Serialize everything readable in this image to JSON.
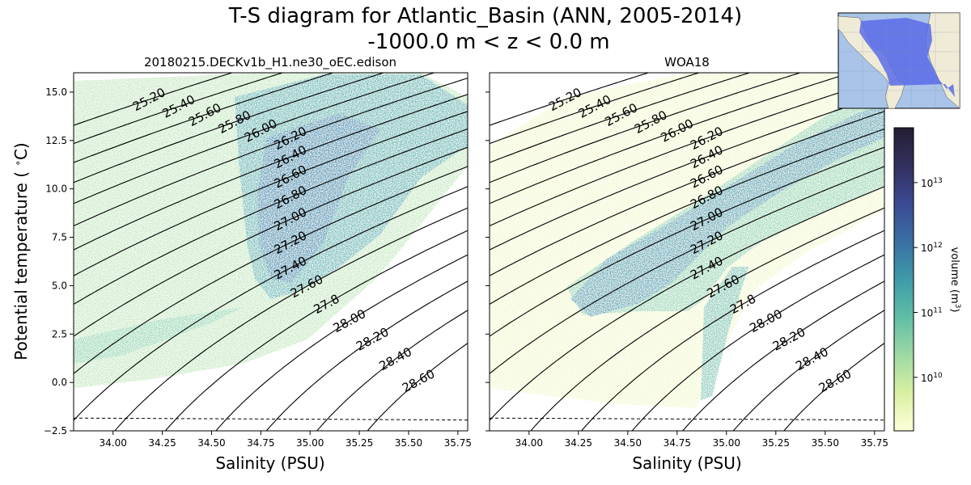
{
  "figure": {
    "title_line1": "T-S diagram for Atlantic_Basin (ANN, 2005-2014)",
    "title_line2": "-1000.0 m < z < 0.0 m",
    "map_inset": "atlantic-basin-map"
  },
  "chart_data": [
    {
      "type": "heatmap",
      "panel": "left",
      "title": "20180215.DECKv1b_H1.ne30_oEC.edison",
      "xlabel": "Salinity (PSU)",
      "ylabel": "Potential temperature ($^\\circ$C)",
      "xlim": [
        33.8,
        35.8
      ],
      "ylim": [
        -2.5,
        16.0
      ],
      "xticks": [
        "34.00",
        "34.25",
        "34.50",
        "34.75",
        "35.00",
        "35.25",
        "35.50",
        "35.75"
      ],
      "yticks": [
        "−2.5",
        "0.0",
        "2.5",
        "5.0",
        "7.5",
        "10.0",
        "12.5",
        "15.0"
      ],
      "freezing_line_T": [
        -1.84,
        -1.94
      ],
      "density_contours": [
        {
          "label": "25.20",
          "value": 25.2
        },
        {
          "label": "25.40",
          "value": 25.4
        },
        {
          "label": "25.60",
          "value": 25.6
        },
        {
          "label": "25.80",
          "value": 25.8
        },
        {
          "label": "26.00",
          "value": 26.0
        },
        {
          "label": "26.20",
          "value": 26.2
        },
        {
          "label": "26.40",
          "value": 26.4
        },
        {
          "label": "26.60",
          "value": 26.6
        },
        {
          "label": "26.80",
          "value": 26.8
        },
        {
          "label": "27.00",
          "value": 27.0
        },
        {
          "label": "27.20",
          "value": 27.2
        },
        {
          "label": "27.40",
          "value": 27.4
        },
        {
          "label": "27.60",
          "value": 27.6
        },
        {
          "label": "27.8",
          "value": 27.8
        },
        {
          "label": "28.00",
          "value": 28.0
        },
        {
          "label": "28.20",
          "value": 28.2
        },
        {
          "label": "28.40",
          "value": 28.4
        },
        {
          "label": "28.60",
          "value": 28.6
        }
      ]
    },
    {
      "type": "heatmap",
      "panel": "right",
      "title": "WOA18",
      "xlabel": "Salinity (PSU)",
      "xlim": [
        33.8,
        35.8
      ],
      "ylim": [
        -2.5,
        16.0
      ],
      "xticks": [
        "34.00",
        "34.25",
        "34.50",
        "34.75",
        "35.00",
        "35.25",
        "35.50",
        "35.75"
      ],
      "freezing_line_T": [
        -1.84,
        -1.94
      ],
      "density_contours": [
        {
          "label": "25.20",
          "value": 25.2
        },
        {
          "label": "25.40",
          "value": 25.4
        },
        {
          "label": "25.60",
          "value": 25.6
        },
        {
          "label": "25.80",
          "value": 25.8
        },
        {
          "label": "26.00",
          "value": 26.0
        },
        {
          "label": "26.20",
          "value": 26.2
        },
        {
          "label": "26.40",
          "value": 26.4
        },
        {
          "label": "26.60",
          "value": 26.6
        },
        {
          "label": "26.80",
          "value": 26.8
        },
        {
          "label": "27.00",
          "value": 27.0
        },
        {
          "label": "27.20",
          "value": 27.2
        },
        {
          "label": "27.40",
          "value": 27.4
        },
        {
          "label": "27.60",
          "value": 27.6
        },
        {
          "label": "27.8",
          "value": 27.8
        },
        {
          "label": "28.00",
          "value": 28.0
        },
        {
          "label": "28.20",
          "value": 28.2
        },
        {
          "label": "28.40",
          "value": 28.4
        },
        {
          "label": "28.60",
          "value": 28.6
        }
      ]
    }
  ],
  "colorbar": {
    "label": "volume (m$^3$)",
    "scale": "log",
    "range_m3": [
      1500000000.0,
      70000000000000.0
    ],
    "ticks": [
      {
        "label": "10^10",
        "value": 10000000000.0,
        "base": "10",
        "exp": "10"
      },
      {
        "label": "10^11",
        "value": 100000000000.0,
        "base": "10",
        "exp": "11"
      },
      {
        "label": "10^12",
        "value": 1000000000000.0,
        "base": "10",
        "exp": "12"
      },
      {
        "label": "10^13",
        "value": 10000000000000.0,
        "base": "10",
        "exp": "13"
      }
    ],
    "colors": [
      "#ffffd9",
      "#d9f0a3",
      "#9ed9a3",
      "#5fbea6",
      "#3e9aa8",
      "#3a6fa3",
      "#3b4a93",
      "#33305f",
      "#241e33"
    ]
  }
}
